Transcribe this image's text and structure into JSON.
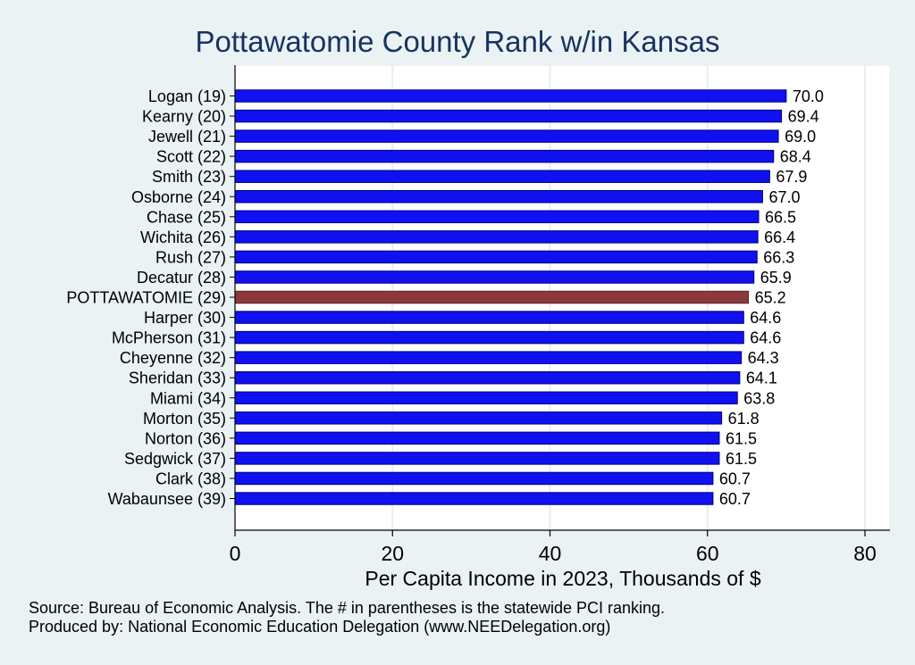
{
  "chart_data": {
    "type": "bar",
    "orientation": "horizontal",
    "title": "Pottawatomie County Rank w/in Kansas",
    "xlabel": "Per Capita Income in 2023, Thousands of $",
    "ylabel": "",
    "xlim": [
      0,
      80
    ],
    "xticks": [
      0,
      20,
      40,
      60,
      80
    ],
    "grid": true,
    "categories": [
      "Logan (19)",
      "Kearny (20)",
      "Jewell (21)",
      "Scott (22)",
      "Smith (23)",
      "Osborne (24)",
      "Chase (25)",
      "Wichita (26)",
      "Rush (27)",
      "Decatur (28)",
      "POTTAWATOMIE (29)",
      "Harper (30)",
      "McPherson (31)",
      "Cheyenne (32)",
      "Sheridan (33)",
      "Miami (34)",
      "Morton (35)",
      "Norton (36)",
      "Sedgwick (37)",
      "Clark (38)",
      "Wabaunsee (39)"
    ],
    "values": [
      70.0,
      69.4,
      69.0,
      68.4,
      67.9,
      67.0,
      66.5,
      66.4,
      66.3,
      65.9,
      65.2,
      64.6,
      64.6,
      64.3,
      64.1,
      63.8,
      61.8,
      61.5,
      61.5,
      60.7,
      60.7
    ],
    "value_labels": [
      "70.0",
      "69.4",
      "69.0",
      "68.4",
      "67.9",
      "67.0",
      "66.5",
      "66.4",
      "66.3",
      "65.9",
      "65.2",
      "64.6",
      "64.6",
      "64.3",
      "64.1",
      "63.8",
      "61.8",
      "61.5",
      "61.5",
      "60.7",
      "60.7"
    ],
    "highlight_index": 10,
    "colors": {
      "bar": "#1010f0",
      "bar_edge": "#000080",
      "highlight": "#8b3a3a",
      "background": "#eaf2f3",
      "plot_background": "#ffffff",
      "title": "#1a3260"
    }
  },
  "footer": {
    "source": "Source: Bureau of Economic Analysis. The # in parentheses is the statewide PCI ranking.",
    "produced_by": "Produced by: National Economic Education Delegation (www.NEEDelegation.org)"
  }
}
